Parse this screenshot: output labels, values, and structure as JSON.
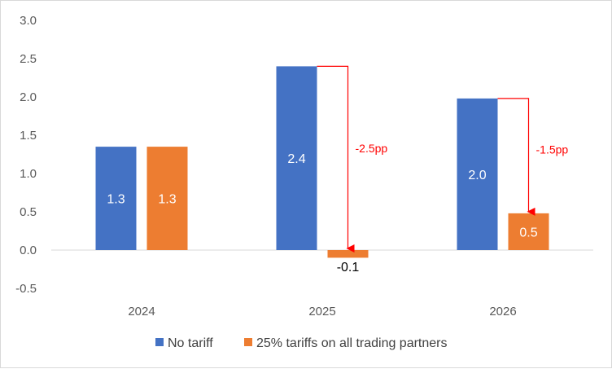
{
  "chart_data": {
    "type": "bar",
    "title": "",
    "xlabel": "",
    "ylabel": "",
    "ylim": [
      -0.5,
      3.0
    ],
    "yticks": [
      "3.0",
      "2.5",
      "2.0",
      "1.5",
      "1.0",
      "0.5",
      "0.0",
      "-0.5"
    ],
    "categories": [
      "2024",
      "2025",
      "2026"
    ],
    "series": [
      {
        "name": "No tariff",
        "color": "#4472c4",
        "values": [
          1.35,
          2.4,
          1.98
        ],
        "labels": [
          "1.3",
          "2.4",
          "2.0"
        ]
      },
      {
        "name": "25% tariffs on all trading partners",
        "color": "#ed7d31",
        "values": [
          1.35,
          -0.1,
          0.48
        ],
        "labels": [
          "1.3",
          "-0.1",
          "0.5"
        ]
      }
    ],
    "annotations": [
      {
        "category": "2025",
        "text": "-2.5pp",
        "color": "#ff0000"
      },
      {
        "category": "2026",
        "text": "-1.5pp",
        "color": "#ff0000"
      }
    ],
    "legend_position": "bottom",
    "grid": false
  }
}
